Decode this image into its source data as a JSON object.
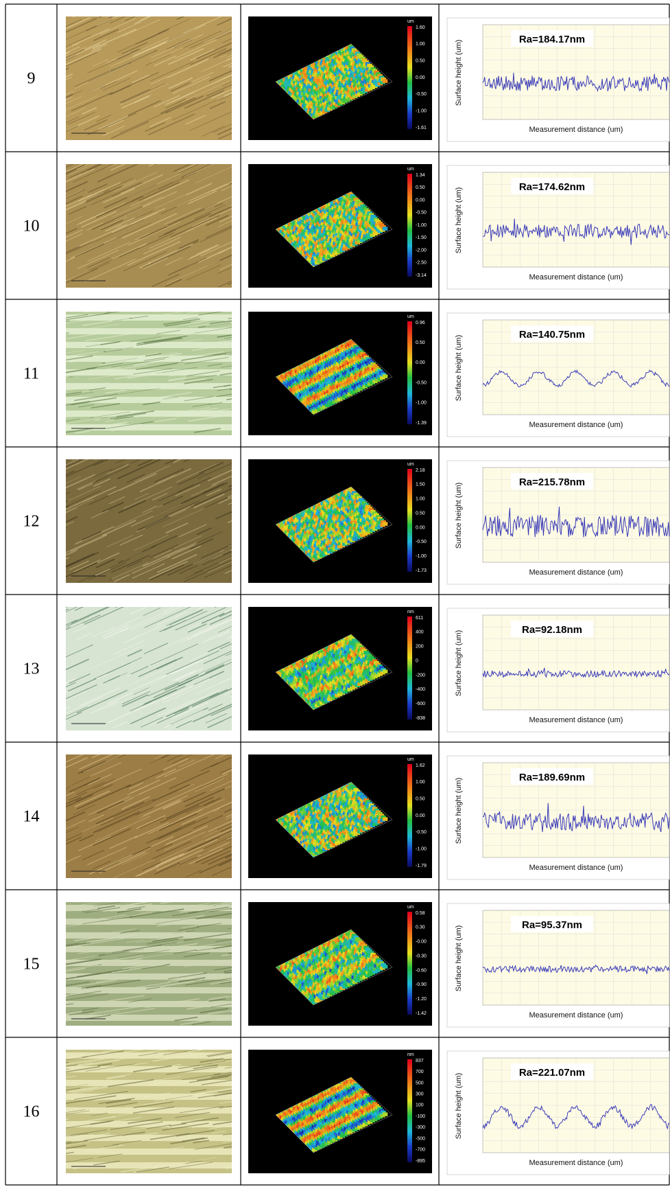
{
  "rows": [
    {
      "sample": "9",
      "colorbar_unit": "um",
      "colorbar_labels": [
        "1.60",
        "1.00",
        "0.50",
        "0.00",
        "-0.50",
        "-1.00",
        "-1.61"
      ],
      "ra": "Ra=184.17nm",
      "y_axis_title": "Surface height (um)",
      "x_axis_title": "Measurement distance (um)"
    },
    {
      "sample": "10",
      "colorbar_unit": "um",
      "colorbar_labels": [
        "1.34",
        "0.50",
        "0.00",
        "-0.50",
        "-1.00",
        "-1.50",
        "-2.00",
        "-2.50",
        "-3.14"
      ],
      "ra": "Ra=174.62nm",
      "y_axis_title": "Surface height (um)",
      "x_axis_title": "Measurement distance (um)"
    },
    {
      "sample": "11",
      "colorbar_unit": "um",
      "colorbar_labels": [
        "0.96",
        "0.50",
        "0.00",
        "-0.50",
        "-1.00",
        "-1.39"
      ],
      "ra": "Ra=140.75nm",
      "y_axis_title": "Surface height (um)",
      "x_axis_title": "Measurement distance (um)"
    },
    {
      "sample": "12",
      "colorbar_unit": "um",
      "colorbar_labels": [
        "2.18",
        "1.50",
        "1.00",
        "0.50",
        "0.00",
        "-0.50",
        "-1.00",
        "-1.73"
      ],
      "ra": "Ra=215.78nm",
      "y_axis_title": "Surface height (um)",
      "x_axis_title": "Measurement distance (um)"
    },
    {
      "sample": "13",
      "colorbar_unit": "nm",
      "colorbar_labels": [
        "611",
        "400",
        "200",
        "0",
        "-200",
        "-400",
        "-600",
        "-838"
      ],
      "ra": "Ra=92.18nm",
      "y_axis_title": "Surface height (um)",
      "x_axis_title": "Measurement distance (um)"
    },
    {
      "sample": "14",
      "colorbar_unit": "um",
      "colorbar_labels": [
        "1.62",
        "1.00",
        "0.50",
        "0.00",
        "-0.50",
        "-1.00",
        "-1.79"
      ],
      "ra": "Ra=189.69nm",
      "y_axis_title": "Surface height (um)",
      "x_axis_title": "Measurement distance (um)"
    },
    {
      "sample": "15",
      "colorbar_unit": "um",
      "colorbar_labels": [
        "0.58",
        "0.30",
        "-0.00",
        "-0.30",
        "-0.60",
        "-0.90",
        "-1.20",
        "-1.42"
      ],
      "ra": "Ra=95.37nm",
      "y_axis_title": "Surface height (um)",
      "x_axis_title": "Measurement distance (um)"
    },
    {
      "sample": "16",
      "colorbar_unit": "nm",
      "colorbar_labels": [
        "837",
        "700",
        "500",
        "300",
        "100",
        "-100",
        "-300",
        "-500",
        "-700",
        "-895"
      ],
      "ra": "Ra=221.07nm",
      "y_axis_title": "Surface height (um)",
      "x_axis_title": "Measurement distance (um)"
    }
  ]
}
